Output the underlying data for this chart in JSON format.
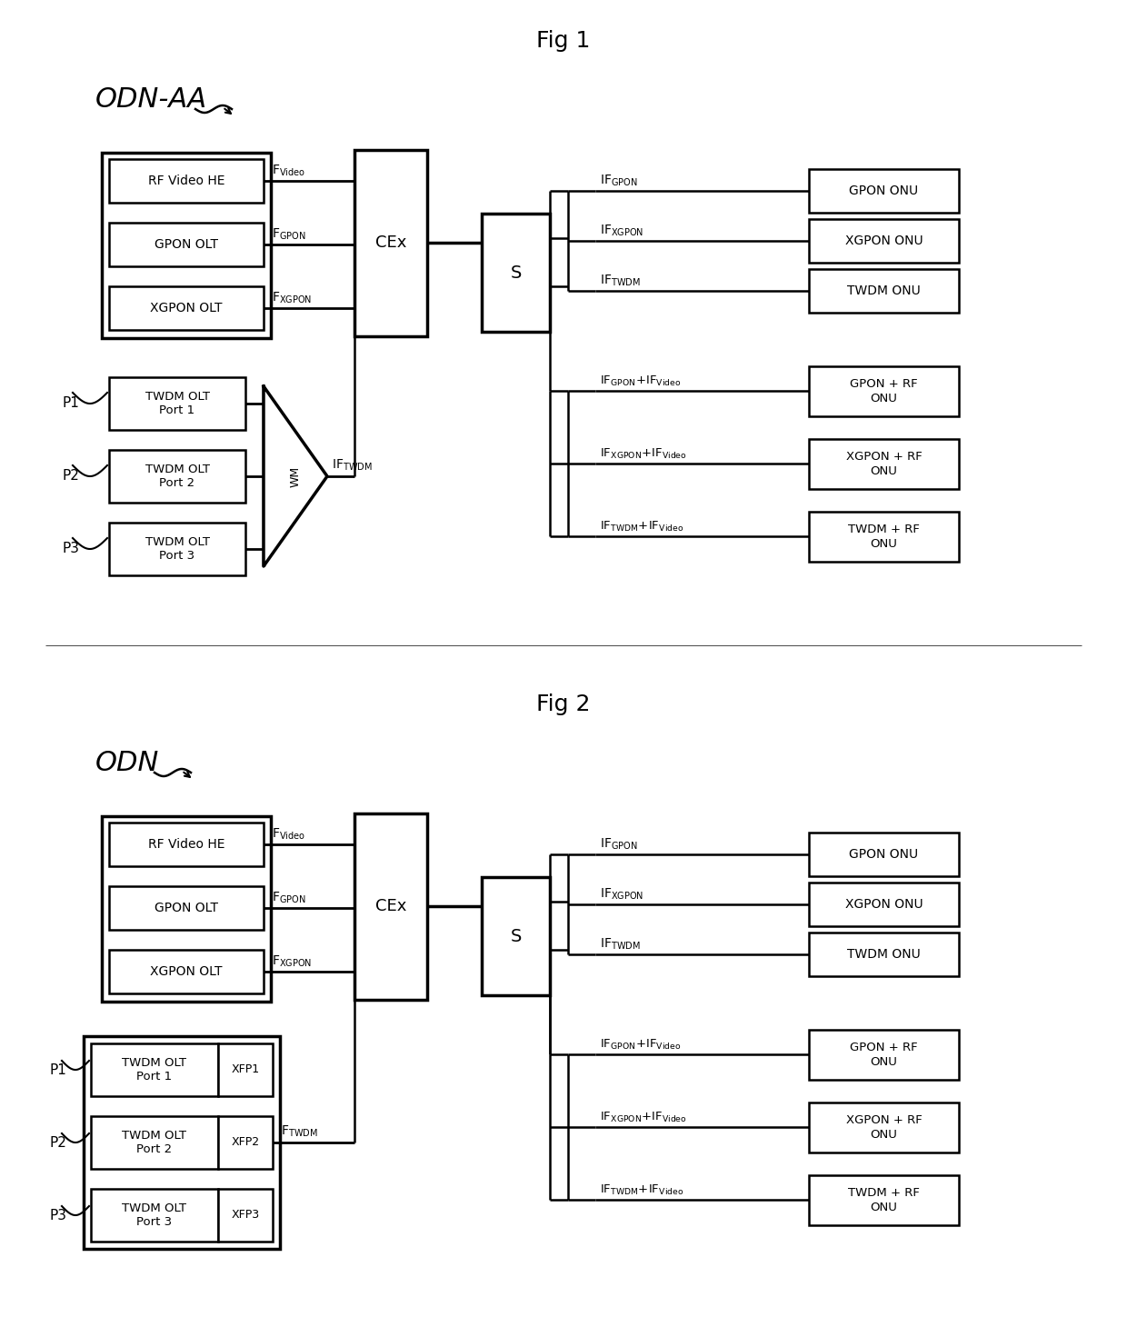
{
  "fig1_title": "Fig 1",
  "fig2_title": "Fig 2",
  "fig1_label": "ODN-AA",
  "fig2_label": "ODN",
  "bg": "#ffffff",
  "lc": "#000000",
  "lw_thin": 1.5,
  "lw_thick": 2.5
}
